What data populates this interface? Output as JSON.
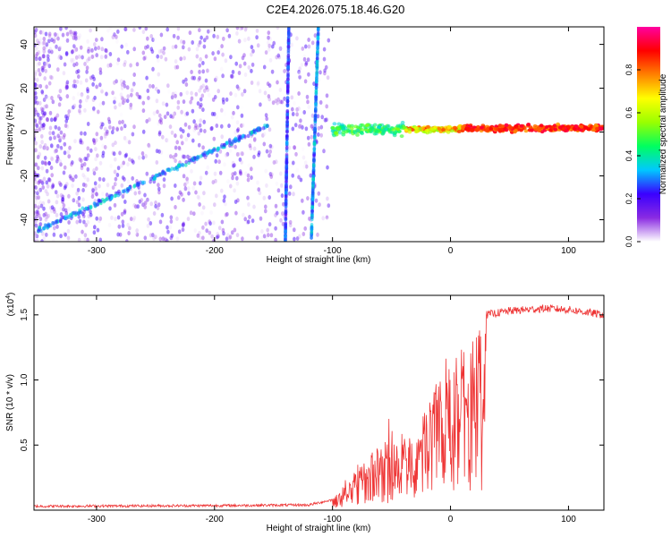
{
  "title": "C2E4.2026.075.18.46.G20",
  "chart_data": [
    {
      "type": "heatmap",
      "name": "spectrogram",
      "xlabel": "Height of straight line (km)",
      "ylabel": "Frequency (Hz)",
      "xlim": [
        -353,
        130
      ],
      "ylim": [
        -50,
        48
      ],
      "xticks": [
        -300,
        -200,
        -100,
        0,
        100
      ],
      "xtick_labels": [
        "-300",
        "-200",
        "-100",
        "0",
        "100"
      ],
      "yticks": [
        -40,
        -20,
        0,
        20,
        40
      ],
      "ytick_labels": [
        "-40",
        "-20",
        "0",
        "20",
        "40"
      ],
      "colorbar": {
        "label": "Normalized spectral amplitude",
        "range": [
          0,
          1
        ],
        "ticks": [
          0.0,
          0.2,
          0.4,
          0.6,
          0.8
        ],
        "tick_labels": [
          "0.0",
          "0.2",
          "0.4",
          "0.6",
          "0.8"
        ],
        "stops": [
          "#ffffff",
          "#8a2be2",
          "#3a00ff",
          "#00c8ff",
          "#00ff60",
          "#9aff00",
          "#ffff00",
          "#ff8000",
          "#ff0000",
          "#ff00a0"
        ]
      },
      "features": [
        {
          "name": "rising ridge",
          "from": [
            -350,
            -45
          ],
          "to": [
            -155,
            3
          ],
          "amplitude": 0.3
        },
        {
          "name": "steep streak 1",
          "from": [
            -140,
            -50
          ],
          "to": [
            -137,
            48
          ],
          "amplitude": 0.25
        },
        {
          "name": "steep streak 2",
          "from": [
            -118,
            -50
          ],
          "to": [
            -112,
            48
          ],
          "amplitude": 0.3
        },
        {
          "name": "central band",
          "from": [
            -100,
            1
          ],
          "to": [
            130,
            2
          ],
          "amplitude": 0.9
        }
      ]
    },
    {
      "type": "line",
      "name": "snr",
      "xlabel": "Height of straight line (km)",
      "ylabel": "SNR (10 * v/v)",
      "y_multiplier": "(x10",
      "y_multiplier_exp": "4",
      "y_multiplier_close": ")",
      "xlim": [
        -353,
        130
      ],
      "ylim": [
        0,
        1.65
      ],
      "xticks": [
        -300,
        -200,
        -100,
        0,
        100
      ],
      "xtick_labels": [
        "-300",
        "-200",
        "-100",
        "0",
        "100"
      ],
      "yticks": [
        0.5,
        1.0,
        1.5
      ],
      "ytick_labels": [
        "0.5",
        "1.0",
        "1.5"
      ],
      "color": "#ee3333",
      "envelope": [
        {
          "x": -353,
          "y": 0.03
        },
        {
          "x": -200,
          "y": 0.035
        },
        {
          "x": -120,
          "y": 0.04
        },
        {
          "x": -100,
          "y": 0.08
        },
        {
          "x": -90,
          "y": 0.2
        },
        {
          "x": -80,
          "y": 0.35
        },
        {
          "x": -70,
          "y": 0.45
        },
        {
          "x": -60,
          "y": 0.5
        },
        {
          "x": -50,
          "y": 0.55
        },
        {
          "x": -40,
          "y": 0.6
        },
        {
          "x": -30,
          "y": 0.7
        },
        {
          "x": -20,
          "y": 0.9
        },
        {
          "x": -10,
          "y": 1.0
        },
        {
          "x": 0,
          "y": 1.1
        },
        {
          "x": 10,
          "y": 1.25
        },
        {
          "x": 20,
          "y": 1.4
        },
        {
          "x": 30,
          "y": 1.5
        },
        {
          "x": 50,
          "y": 1.53
        },
        {
          "x": 80,
          "y": 1.55
        },
        {
          "x": 100,
          "y": 1.54
        },
        {
          "x": 130,
          "y": 1.5
        }
      ]
    }
  ]
}
